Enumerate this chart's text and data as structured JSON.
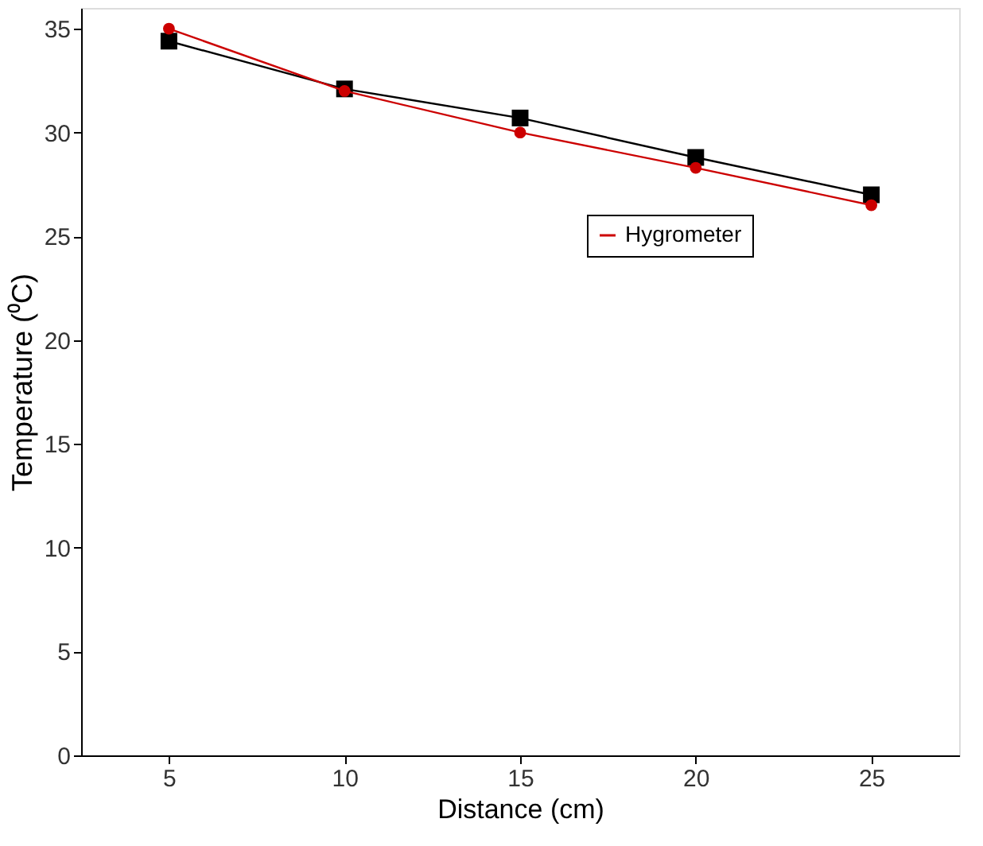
{
  "chart_data": {
    "type": "line",
    "xlabel": "Distance (cm)",
    "ylabel": "Temperature (⁰C)",
    "x": [
      5,
      10,
      15,
      20,
      25
    ],
    "series": [
      {
        "color": "#000000",
        "marker": "square",
        "values": [
          34.4,
          32.1,
          30.7,
          28.8,
          27.0
        ]
      },
      {
        "name": "Hygrometer",
        "color": "#cc0000",
        "marker": "circle",
        "values": [
          35.0,
          32.0,
          30.0,
          28.3,
          26.5
        ]
      }
    ],
    "xlim": [
      2.5,
      27.5
    ],
    "xticks": [
      5,
      10,
      15,
      20,
      25
    ],
    "ylim": [
      0,
      36
    ],
    "yticks": [
      0,
      5,
      10,
      15,
      20,
      25,
      30,
      35
    ],
    "grid": false,
    "legend": "top right",
    "line_style": "solid"
  }
}
